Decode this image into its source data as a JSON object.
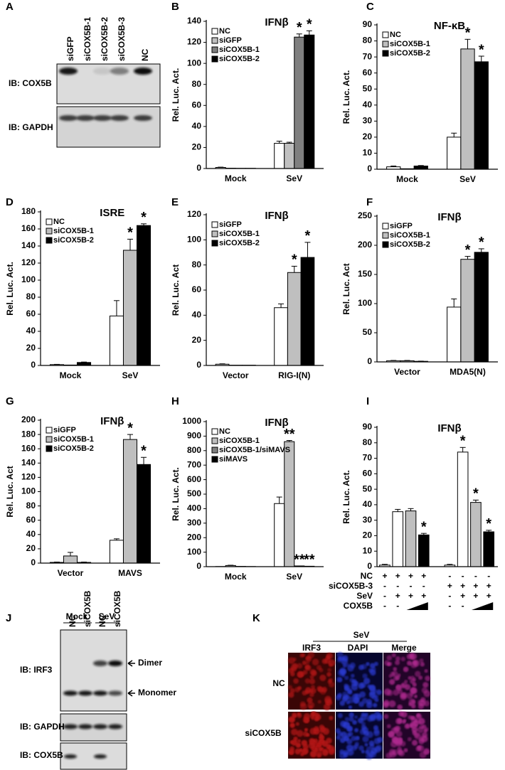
{
  "chart_data": [
    {
      "type": "bar",
      "panel": "B",
      "title": "IFNβ",
      "y_label": "Rel. Luc. Act.",
      "categories": [
        "Mock",
        "SeV"
      ],
      "series": [
        {
          "name": "NC",
          "color": "#ffffff",
          "values": [
            1,
            24
          ],
          "errors": [
            0.3,
            2
          ],
          "significance": [
            null,
            null
          ]
        },
        {
          "name": "siGFP",
          "color": "#c0c0c0",
          "values": [
            0.3,
            24
          ],
          "errors": [
            null,
            1
          ],
          "significance": [
            null,
            null
          ]
        },
        {
          "name": "siCOX5B-1",
          "color": "#7f7f7f",
          "values": [
            0.2,
            125
          ],
          "errors": [
            null,
            3
          ],
          "significance": [
            null,
            "*"
          ]
        },
        {
          "name": "siCOX5B-2",
          "color": "#000000",
          "values": [
            0.2,
            127
          ],
          "errors": [
            null,
            4
          ],
          "significance": [
            null,
            "*"
          ]
        }
      ],
      "ylim": [
        0,
        140
      ],
      "yticks": [
        0,
        20,
        40,
        60,
        80,
        100,
        120,
        140
      ],
      "legend": "upper left"
    },
    {
      "type": "bar",
      "panel": "C",
      "title": "NF-κB",
      "y_label": "Rel. Luc. Act.",
      "categories": [
        "Mock",
        "SeV"
      ],
      "series": [
        {
          "name": "NC",
          "color": "#ffffff",
          "values": [
            1.5,
            20
          ],
          "errors": [
            0.5,
            2.5
          ],
          "significance": [
            null,
            null
          ]
        },
        {
          "name": "siCOX5B-1",
          "color": "#bfbfbf",
          "values": [
            0.3,
            75
          ],
          "errors": [
            null,
            6
          ],
          "significance": [
            null,
            "*"
          ]
        },
        {
          "name": "siCOX5B-2",
          "color": "#000000",
          "values": [
            2,
            67
          ],
          "errors": [
            0.3,
            3.5
          ],
          "significance": [
            null,
            "*"
          ]
        }
      ],
      "ylim": [
        0,
        90
      ],
      "yticks": [
        0,
        10,
        20,
        30,
        40,
        50,
        60,
        70,
        80,
        90
      ],
      "legend": "upper left"
    },
    {
      "type": "bar",
      "panel": "D",
      "title": "ISRE",
      "y_label": "Rel. Luc. Act.",
      "categories": [
        "Mock",
        "SeV"
      ],
      "series": [
        {
          "name": "NC",
          "color": "#ffffff",
          "values": [
            1,
            58
          ],
          "errors": [
            0.3,
            18
          ],
          "significance": [
            null,
            null
          ]
        },
        {
          "name": "siCOX5B-1",
          "color": "#bfbfbf",
          "values": [
            0.5,
            135
          ],
          "errors": [
            null,
            13
          ],
          "significance": [
            null,
            "*"
          ]
        },
        {
          "name": "siCOX5B-2",
          "color": "#000000",
          "values": [
            3.5,
            164
          ],
          "errors": [
            0.5,
            2
          ],
          "significance": [
            null,
            "*"
          ]
        }
      ],
      "ylim": [
        0,
        180
      ],
      "yticks": [
        0,
        20,
        40,
        60,
        80,
        100,
        120,
        140,
        160,
        180
      ],
      "legend": "upper left"
    },
    {
      "type": "bar",
      "panel": "E",
      "title": "IFNβ",
      "y_label": "Rel. Luc. Act",
      "categories": [
        "Vector",
        "RIG-I(N)"
      ],
      "series": [
        {
          "name": "siGFP",
          "color": "#ffffff",
          "values": [
            1,
            46
          ],
          "errors": [
            0.3,
            3
          ],
          "significance": [
            null,
            null
          ]
        },
        {
          "name": "siCOX5B-1",
          "color": "#bfbfbf",
          "values": [
            0.2,
            74
          ],
          "errors": [
            null,
            5
          ],
          "significance": [
            null,
            "*"
          ]
        },
        {
          "name": "siCOX5B-2",
          "color": "#000000",
          "values": [
            0.2,
            86
          ],
          "errors": [
            null,
            12
          ],
          "significance": [
            null,
            "*"
          ]
        }
      ],
      "ylim": [
        0,
        120
      ],
      "yticks": [
        0,
        20,
        40,
        60,
        80,
        100,
        120
      ],
      "legend": "upper left"
    },
    {
      "type": "bar",
      "panel": "F",
      "title": "IFNβ",
      "y_label": "Rel. Luc. Act",
      "categories": [
        "Vector",
        "MDA5(N)"
      ],
      "series": [
        {
          "name": "siGFP",
          "color": "#ffffff",
          "values": [
            2,
            94
          ],
          "errors": [
            0.5,
            14
          ],
          "significance": [
            null,
            null
          ]
        },
        {
          "name": "siCOX5B-1",
          "color": "#bfbfbf",
          "values": [
            2,
            176
          ],
          "errors": [
            0.5,
            5
          ],
          "significance": [
            null,
            "*"
          ]
        },
        {
          "name": "siCOX5B-2",
          "color": "#000000",
          "values": [
            1,
            188
          ],
          "errors": [
            0.3,
            6
          ],
          "significance": [
            null,
            "*"
          ]
        }
      ],
      "ylim": [
        0,
        250
      ],
      "yticks": [
        0,
        50,
        100,
        150,
        200,
        250
      ],
      "legend": "upper left"
    },
    {
      "type": "bar",
      "panel": "G",
      "title": "IFNβ",
      "y_label": "Rel. Luc. Act",
      "categories": [
        "Vector",
        "MAVS"
      ],
      "series": [
        {
          "name": "siGFP",
          "color": "#ffffff",
          "values": [
            1,
            32
          ],
          "errors": [
            0.5,
            2
          ],
          "significance": [
            null,
            null
          ]
        },
        {
          "name": "siCOX5B-1",
          "color": "#bfbfbf",
          "values": [
            10,
            173
          ],
          "errors": [
            5,
            7
          ],
          "significance": [
            null,
            "*"
          ]
        },
        {
          "name": "siCOX5B-2",
          "color": "#000000",
          "values": [
            1,
            138
          ],
          "errors": [
            0.5,
            10
          ],
          "significance": [
            null,
            "*"
          ]
        }
      ],
      "ylim": [
        0,
        200
      ],
      "yticks": [
        0,
        20,
        40,
        60,
        80,
        100,
        120,
        140,
        160,
        180,
        200
      ],
      "legend": "upper left"
    },
    {
      "type": "bar",
      "panel": "H",
      "title": "IFNβ",
      "y_label": "Rel. Luc. Act.",
      "categories": [
        "Mock",
        "SeV"
      ],
      "series": [
        {
          "name": "NC",
          "color": "#ffffff",
          "values": [
            1,
            435
          ],
          "errors": [
            null,
            45
          ],
          "significance": [
            null,
            null
          ]
        },
        {
          "name": "siCOX5B-1",
          "color": "#bfbfbf",
          "values": [
            8,
            862
          ],
          "errors": [
            2,
            8
          ],
          "significance": [
            null,
            "**"
          ]
        },
        {
          "name": "siCOX5B-1/siMAVS",
          "color": "#7f7f7f",
          "values": [
            2,
            5
          ],
          "errors": [
            null,
            null
          ],
          "significance": [
            null,
            "**"
          ]
        },
        {
          "name": "siMAVS",
          "color": "#000000",
          "values": [
            1,
            3
          ],
          "errors": [
            null,
            null
          ],
          "significance": [
            null,
            "**"
          ]
        }
      ],
      "ylim": [
        0,
        1000
      ],
      "yticks": [
        0,
        100,
        200,
        300,
        400,
        500,
        600,
        700,
        800,
        900,
        1000
      ],
      "legend": "upper left"
    },
    {
      "type": "bar",
      "panel": "I",
      "title": "IFNβ",
      "y_label": "Rel. Luc. Act.",
      "values": [
        1,
        35.5,
        36,
        20.5,
        1,
        74,
        41.5,
        22.5
      ],
      "errors": [
        0.5,
        1.5,
        1.5,
        1,
        0.5,
        3,
        1.5,
        1
      ],
      "colors": [
        "#ffffff",
        "#ffffff",
        "#bfbfbf",
        "#000000",
        "#ffffff",
        "#ffffff",
        "#bfbfbf",
        "#000000"
      ],
      "significance": [
        null,
        null,
        null,
        "*",
        null,
        "*",
        "*",
        "*"
      ],
      "conditions": [
        {
          "name": "NC",
          "cells": [
            "+",
            "+",
            "+",
            "+",
            "-",
            "-",
            "-",
            "-"
          ]
        },
        {
          "name": "siCOX5B-3",
          "cells": [
            "-",
            "-",
            "-",
            "-",
            "+",
            "+",
            "+",
            "+"
          ]
        },
        {
          "name": "SeV",
          "cells": [
            "-",
            "+",
            "+",
            "+",
            "-",
            "+",
            "+",
            "+"
          ]
        },
        {
          "name": "COX5B",
          "cells": [
            "-",
            "-",
            null,
            null,
            "-",
            "-",
            null,
            null
          ]
        }
      ],
      "ylim": [
        0,
        90
      ],
      "yticks": [
        0,
        10,
        20,
        30,
        40,
        50,
        60,
        70,
        80,
        90
      ]
    }
  ],
  "blot_a": {
    "panel": "A",
    "lanes": [
      "siGFP",
      "siCOX5B-1",
      "siCOX5B-2",
      "siCOX5B-3",
      "NC"
    ],
    "rows": [
      "IB: COX5B",
      "IB: GAPDH"
    ]
  },
  "blot_j": {
    "panel": "J",
    "treatments": [
      "Mock",
      "SeV"
    ],
    "lanes": [
      "NC",
      "siCOX5B",
      "NC",
      "siCOX5B"
    ],
    "rows": [
      "IB: IRF3",
      "IB: GAPDH",
      "IB: COX5B"
    ],
    "bands": [
      "Dimer",
      "Monomer"
    ]
  },
  "image_k": {
    "panel": "K",
    "condition": "SeV",
    "columns": [
      "IRF3",
      "DAPI",
      "Merge"
    ],
    "rows": [
      "NC",
      "siCOX5B"
    ]
  }
}
